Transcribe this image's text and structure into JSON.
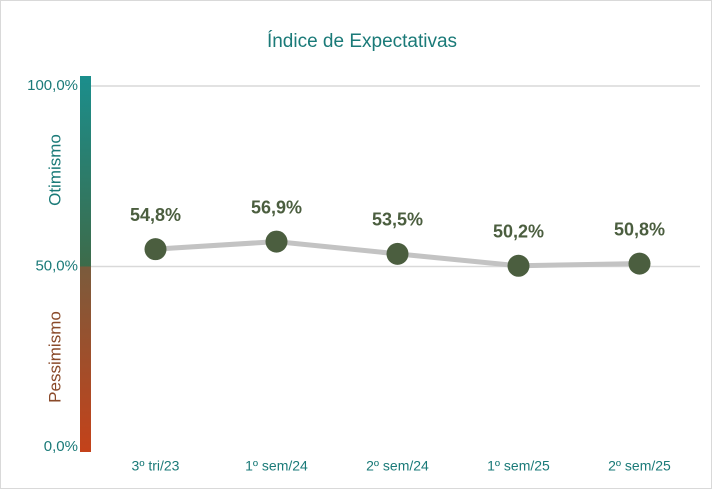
{
  "chart_data": {
    "type": "line",
    "title": "Índice de Expectativas",
    "categories": [
      "3º tri/23",
      "1º sem/24",
      "2º sem/24",
      "1º sem/25",
      "2º sem/25"
    ],
    "series": [
      {
        "name": "Índice",
        "color": "#4b5e3f",
        "values": [
          54.8,
          56.9,
          53.5,
          50.2,
          50.8
        ],
        "value_labels": [
          "54,8%",
          "56,9%",
          "53,5%",
          "50,2%",
          "50,8%"
        ]
      }
    ],
    "ylim": [
      0,
      100
    ],
    "yticks": [
      {
        "value": 0,
        "label": "0,0%"
      },
      {
        "value": 50,
        "label": "50,0%"
      },
      {
        "value": 100,
        "label": "100,0%"
      }
    ],
    "grid": true,
    "annotations": [
      "Otimismo",
      "Pessimismo"
    ]
  }
}
